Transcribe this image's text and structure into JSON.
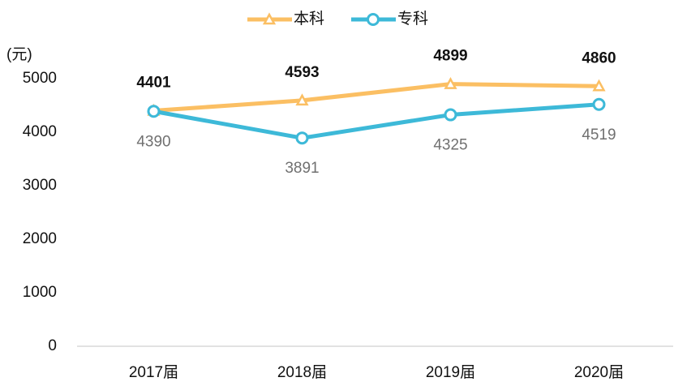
{
  "chart_data": {
    "type": "line",
    "y_label": "(元)",
    "categories": [
      "2017届",
      "2018届",
      "2019届",
      "2020届"
    ],
    "series": [
      {
        "name": "本科",
        "color": "#fbbf63",
        "marker": "triangle",
        "values": [
          4401,
          4593,
          4899,
          4860
        ]
      },
      {
        "name": "专科",
        "color": "#3db9d8",
        "marker": "circle",
        "values": [
          4390,
          3891,
          4325,
          4519
        ]
      }
    ],
    "ylim": [
      0,
      5000
    ],
    "yticks": [
      0,
      1000,
      2000,
      3000,
      4000,
      5000
    ],
    "grid": false,
    "legend": "top"
  }
}
